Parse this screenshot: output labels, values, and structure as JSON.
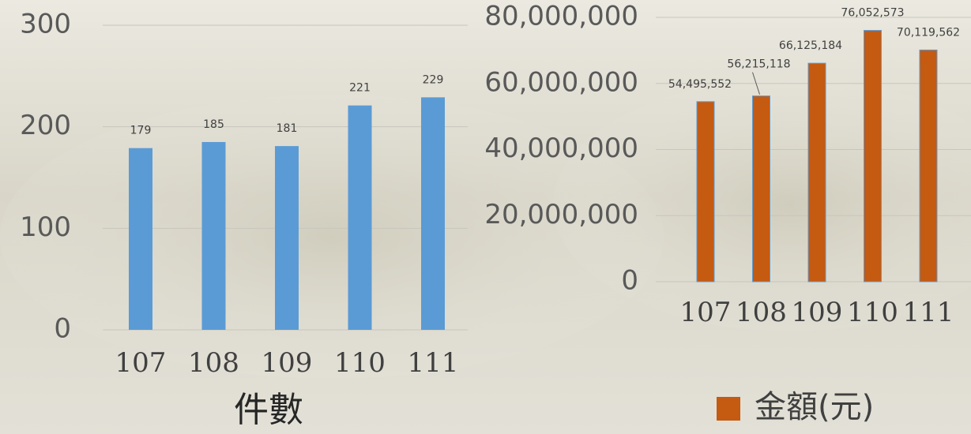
{
  "chart_data": [
    {
      "type": "bar",
      "x_label": "件數",
      "categories": [
        "107",
        "108",
        "109",
        "110",
        "111"
      ],
      "values": [
        179,
        185,
        181,
        221,
        229
      ],
      "color": "#5b9bd5",
      "ylim": [
        0,
        300
      ],
      "yticks": [
        0,
        100,
        200,
        300
      ],
      "grid": true
    },
    {
      "type": "bar",
      "categories": [
        "107",
        "108",
        "109",
        "110",
        "111"
      ],
      "series": [
        {
          "name": "金額(元)",
          "color": "#c55a11",
          "values": [
            54495552,
            56215118,
            66125184,
            76052573,
            70119562
          ],
          "value_labels": [
            "54,495,552",
            "56,215,118",
            "66,125,184",
            "76,052,573",
            "70,119,562"
          ]
        }
      ],
      "ylim": [
        0,
        80000000
      ],
      "yticks": [
        0,
        {
          "value": 20000000,
          "label": "20,000,000"
        },
        {
          "value": 40000000,
          "label": "40,000,000"
        },
        {
          "value": 60000000,
          "label": "60,000,000"
        },
        {
          "value": 80000000,
          "label": "80,000,000"
        }
      ],
      "grid": true,
      "legend": "bottom"
    }
  ]
}
